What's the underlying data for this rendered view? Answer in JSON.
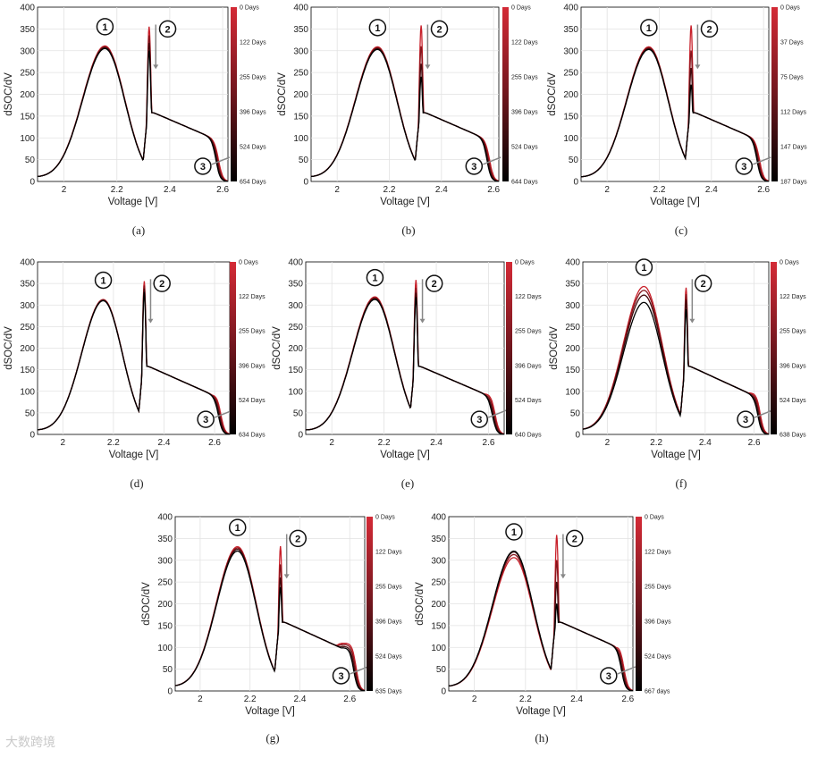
{
  "figure": {
    "watermark": "大数跨境"
  },
  "chart_data": [
    {
      "id": "a",
      "type": "line",
      "caption": "(a)",
      "xlabel": "Voltage [V]",
      "ylabel": "dSOC/dV",
      "xlim": [
        1.9,
        2.62
      ],
      "ylim": [
        0,
        400
      ],
      "xticks": [
        "2",
        "2.2",
        "2.4",
        "2.6"
      ],
      "yticks": [
        "0",
        "50",
        "100",
        "150",
        "200",
        "250",
        "300",
        "350",
        "400"
      ],
      "colorbar_labels": [
        "0 Days",
        "122 Days",
        "255 Days",
        "396 Days",
        "524 Days",
        "654 Days"
      ],
      "annotations": [
        "1",
        "2",
        "3"
      ],
      "series": {
        "peak1_pos": 2.155,
        "peak1": [
          310,
          308,
          306,
          304
        ],
        "peak2_pos": 2.322,
        "peak2": [
          355,
          335,
          318,
          300
        ],
        "tail_end": 2.61,
        "shoulder_level": [
          90,
          88,
          86,
          84
        ]
      }
    },
    {
      "id": "b",
      "type": "line",
      "caption": "(b)",
      "xlabel": "Voltage [V]",
      "ylabel": "dSOC/dV",
      "xlim": [
        1.9,
        2.62
      ],
      "ylim": [
        0,
        400
      ],
      "xticks": [
        "2",
        "2.2",
        "2.4",
        "2.6"
      ],
      "yticks": [
        "0",
        "50",
        "100",
        "150",
        "200",
        "250",
        "300",
        "350",
        "400"
      ],
      "colorbar_labels": [
        "0 Days",
        "122 Days",
        "255 Days",
        "396 Days",
        "524 Days",
        "644 Days"
      ],
      "annotations": [
        "1",
        "2",
        "3"
      ],
      "series": {
        "peak1_pos": 2.155,
        "peak1": [
          308,
          306,
          304,
          302
        ],
        "peak2_pos": 2.322,
        "peak2": [
          358,
          310,
          270,
          240
        ],
        "tail_end": 2.61,
        "shoulder_level": [
          92,
          90,
          88,
          86
        ]
      }
    },
    {
      "id": "c",
      "type": "line",
      "caption": "(c)",
      "xlabel": "Voltage [V]",
      "ylabel": "dSOC/dV",
      "xlim": [
        1.9,
        2.62
      ],
      "ylim": [
        0,
        400
      ],
      "xticks": [
        "2",
        "2.2",
        "2.4",
        "2.6"
      ],
      "yticks": [
        "0",
        "50",
        "100",
        "150",
        "200",
        "250",
        "300",
        "350",
        "400"
      ],
      "colorbar_labels": [
        "0 Days",
        "37 Days",
        "75 Days",
        "112 Days",
        "147 Days",
        "187 Days"
      ],
      "annotations": [
        "1",
        "2",
        "3"
      ],
      "series": {
        "peak1_pos": 2.16,
        "peak1": [
          308,
          306,
          304,
          302
        ],
        "peak2_pos": 2.322,
        "peak2": [
          358,
          300,
          260,
          222
        ],
        "tail_end": 2.61,
        "shoulder_level": [
          92,
          88,
          84,
          80
        ]
      }
    },
    {
      "id": "d",
      "type": "line",
      "caption": "(d)",
      "xlabel": "Voltage [V]",
      "ylabel": "dSOC/dV",
      "xlim": [
        1.9,
        2.66
      ],
      "ylim": [
        0,
        400
      ],
      "xticks": [
        "2",
        "2.2",
        "2.4",
        "2.6"
      ],
      "yticks": [
        "0",
        "50",
        "100",
        "150",
        "200",
        "250",
        "300",
        "350",
        "400"
      ],
      "colorbar_labels": [
        "0 Days",
        "122 Days",
        "255 Days",
        "396 Days",
        "524 Days",
        "634 Days"
      ],
      "annotations": [
        "1",
        "2",
        "3"
      ],
      "series": {
        "peak1_pos": 2.16,
        "peak1": [
          312,
          311,
          310,
          309
        ],
        "peak2_pos": 2.322,
        "peak2": [
          355,
          345,
          338,
          330
        ],
        "tail_end": 2.65,
        "shoulder_level": [
          88,
          87,
          86,
          85
        ]
      }
    },
    {
      "id": "e",
      "type": "line",
      "caption": "(e)",
      "xlabel": "Voltage [V]",
      "ylabel": "dSOC/dV",
      "xlim": [
        1.9,
        2.66
      ],
      "ylim": [
        0,
        400
      ],
      "xticks": [
        "2",
        "2.2",
        "2.4",
        "2.6"
      ],
      "yticks": [
        "0",
        "50",
        "100",
        "150",
        "200",
        "250",
        "300",
        "350",
        "400"
      ],
      "colorbar_labels": [
        "0 Days",
        "122 Days",
        "255 Days",
        "396 Days",
        "524 Days",
        "640 Days"
      ],
      "annotations": [
        "1",
        "2",
        "3"
      ],
      "series": {
        "peak1_pos": 2.165,
        "peak1": [
          318,
          316,
          314,
          312
        ],
        "peak2_pos": 2.322,
        "peak2": [
          358,
          340,
          328,
          318
        ],
        "tail_end": 2.65,
        "shoulder_level": [
          90,
          88,
          86,
          84
        ]
      }
    },
    {
      "id": "f",
      "type": "line",
      "caption": "(f)",
      "xlabel": "Voltage [V]",
      "ylabel": "dSOC/dV",
      "xlim": [
        1.9,
        2.66
      ],
      "ylim": [
        0,
        400
      ],
      "xticks": [
        "2",
        "2.2",
        "2.4",
        "2.6"
      ],
      "yticks": [
        "0",
        "50",
        "100",
        "150",
        "200",
        "250",
        "300",
        "350",
        "400"
      ],
      "colorbar_labels": [
        "0 Days",
        "122 Days",
        "255 Days",
        "396 Days",
        "524 Days",
        "638 Days"
      ],
      "annotations": [
        "1",
        "2",
        "3"
      ],
      "series": {
        "peak1_pos": 2.15,
        "peak1": [
          342,
          333,
          322,
          305
        ],
        "peak2_pos": 2.322,
        "peak2": [
          340,
          325,
          312,
          290
        ],
        "tail_end": 2.65,
        "shoulder_level": [
          92,
          90,
          88,
          86
        ]
      }
    },
    {
      "id": "g",
      "type": "line",
      "caption": "(g)",
      "xlabel": "Voltage [V]",
      "ylabel": "dSOC/dV",
      "xlim": [
        1.9,
        2.66
      ],
      "ylim": [
        0,
        400
      ],
      "xticks": [
        "2",
        "2.2",
        "2.4",
        "2.6"
      ],
      "yticks": [
        "0",
        "50",
        "100",
        "150",
        "200",
        "250",
        "300",
        "350",
        "400"
      ],
      "colorbar_labels": [
        "0 Days",
        "122 Days",
        "255 Days",
        "396 Days",
        "524 Days",
        "635 Days"
      ],
      "annotations": [
        "1",
        "2",
        "3"
      ],
      "series": {
        "peak1_pos": 2.15,
        "peak1": [
          330,
          327,
          324,
          320
        ],
        "peak2_pos": 2.322,
        "peak2": [
          332,
          290,
          260,
          238
        ],
        "tail_end": 2.65,
        "shoulder_level": [
          105,
          102,
          98,
          95
        ]
      }
    },
    {
      "id": "h",
      "type": "line",
      "caption": "(h)",
      "xlabel": "Voltage [V]",
      "ylabel": "dSOC/dV",
      "xlim": [
        1.9,
        2.62
      ],
      "ylim": [
        0,
        400
      ],
      "xticks": [
        "2",
        "2.2",
        "2.4",
        "2.6"
      ],
      "yticks": [
        "0",
        "50",
        "100",
        "150",
        "200",
        "250",
        "300",
        "350",
        "400"
      ],
      "colorbar_labels": [
        "0 Days",
        "122 Days",
        "255 Days",
        "396 Days",
        "524 Days",
        "667 days"
      ],
      "annotations": [
        "1",
        "2",
        "3"
      ],
      "series": {
        "peak1_pos": 2.155,
        "peak1": [
          305,
          312,
          318,
          320
        ],
        "peak2_pos": 2.322,
        "peak2": [
          358,
          300,
          250,
          200
        ],
        "tail_end": 2.61,
        "shoulder_level": [
          100,
          98,
          96,
          94
        ]
      }
    }
  ]
}
